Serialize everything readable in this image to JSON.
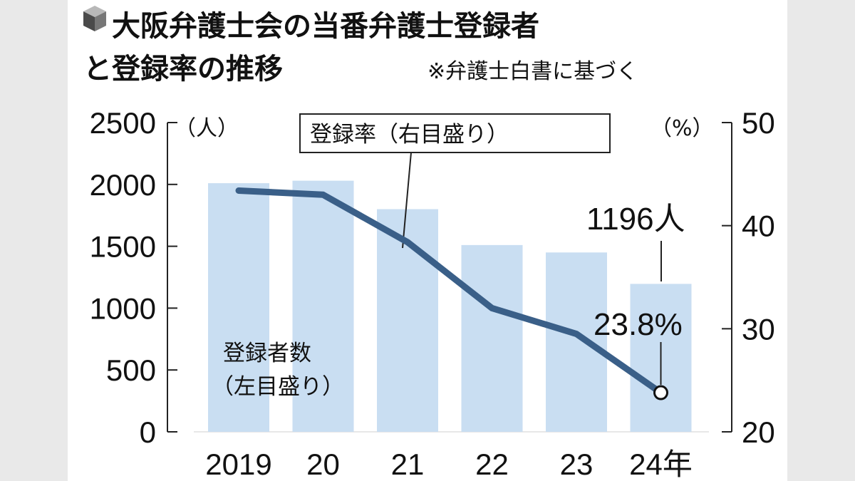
{
  "chart_data": {
    "type": "bar+line",
    "title_line1": "大阪弁護士会の当番弁護士登録者",
    "title_line2": "と登録率の推移",
    "source_note": "※弁護士白書に基づく",
    "categories": [
      "2019",
      "20",
      "21",
      "22",
      "23",
      "24年"
    ],
    "left_axis": {
      "unit": "（人）",
      "ticks": [
        "2500",
        "2000",
        "1500",
        "1000",
        "500",
        "0"
      ],
      "range": [
        0,
        2500
      ]
    },
    "right_axis": {
      "unit": "（%）",
      "ticks": [
        "50",
        "40",
        "30",
        "20"
      ],
      "range": [
        20,
        50
      ]
    },
    "series": [
      {
        "label_line1": "登録者数",
        "label_line2": "（左目盛り）",
        "kind": "bar",
        "axis": "left",
        "color": "#c9def2",
        "values": [
          2010,
          2030,
          1800,
          1510,
          1450,
          1196
        ]
      },
      {
        "label": "登録率（右目盛り）",
        "kind": "line",
        "axis": "right",
        "color": "#3a5f88",
        "values": [
          43.4,
          43.0,
          38.4,
          32.0,
          29.5,
          23.8
        ]
      }
    ],
    "annotations": {
      "last_bar": "1196人",
      "last_point": "23.8%"
    }
  }
}
